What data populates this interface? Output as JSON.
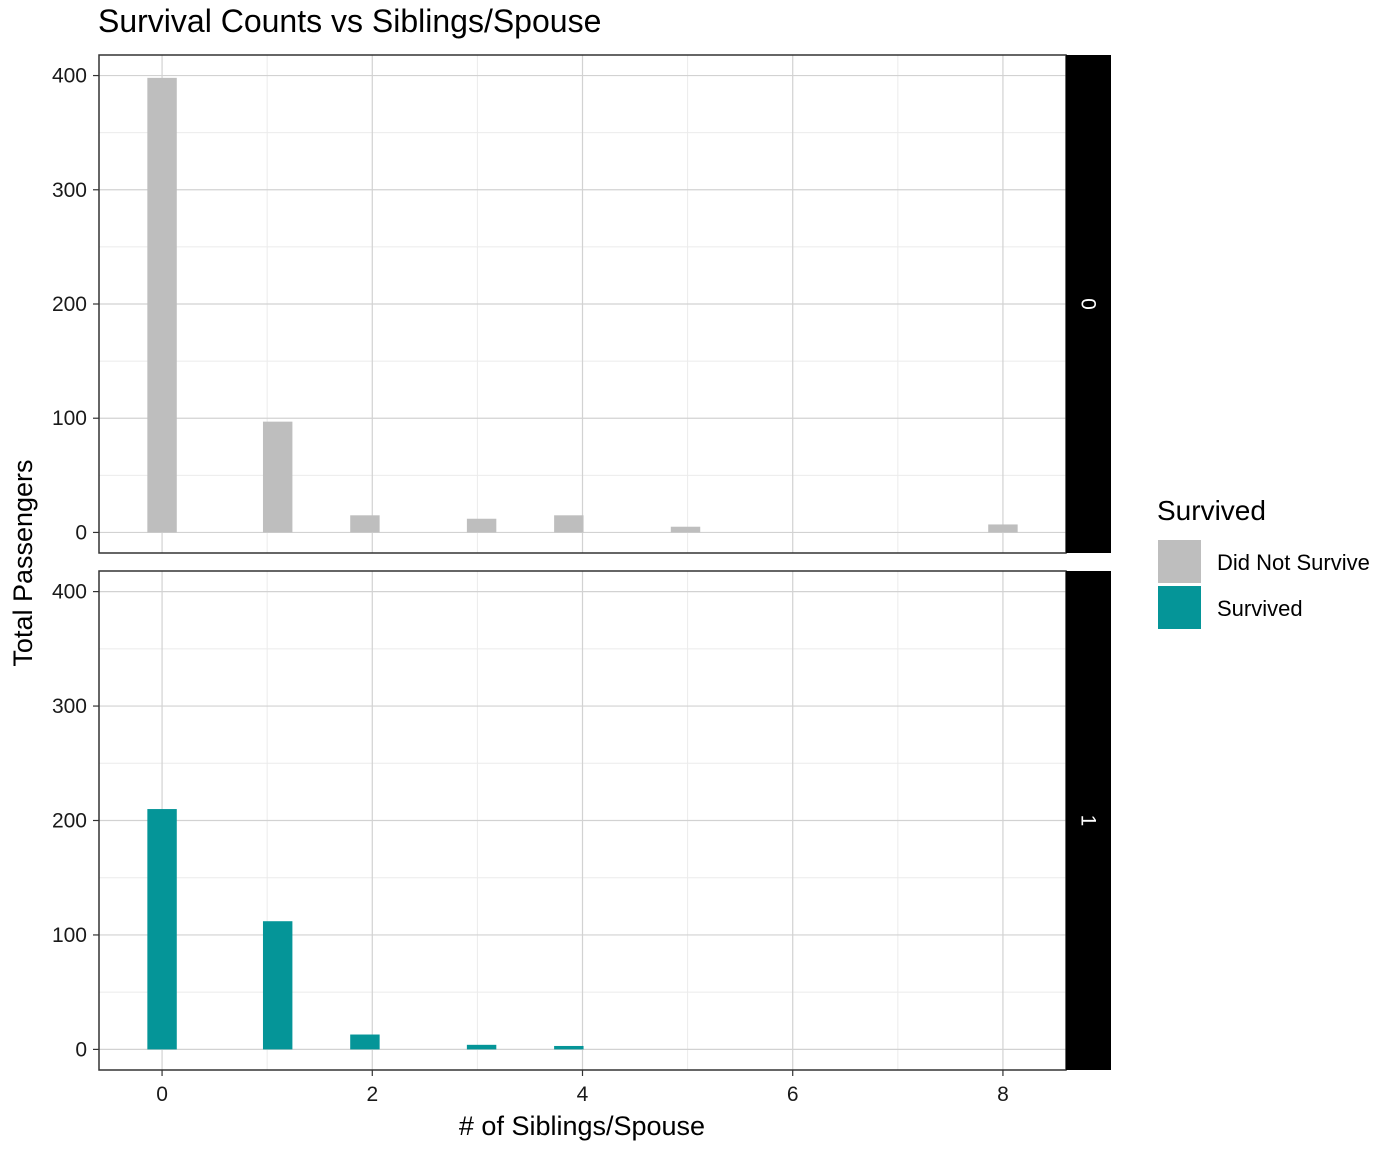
{
  "chart_data": {
    "type": "bar",
    "title": "Survival Counts vs Siblings/Spouse",
    "xlabel": "# of Siblings/Spouse",
    "ylabel": "Total Passengers",
    "xlim": [
      -0.6,
      8.6
    ],
    "ylim": [
      -18,
      418
    ],
    "x_ticks": [
      0,
      2,
      4,
      6,
      8
    ],
    "y_ticks": [
      0,
      100,
      200,
      300,
      400
    ],
    "grid": true,
    "bar_width": 0.28,
    "legend": {
      "title": "Survived",
      "position": "right",
      "entries": [
        {
          "label": "Did Not Survive",
          "color": "#bebebe"
        },
        {
          "label": "Survived",
          "color": "#059598"
        }
      ]
    },
    "facets": [
      {
        "strip": "0",
        "color": "#bebebe",
        "points": [
          {
            "x": 0,
            "y": 398
          },
          {
            "x": 1.1,
            "y": 97
          },
          {
            "x": 1.93,
            "y": 15
          },
          {
            "x": 3.04,
            "y": 12
          },
          {
            "x": 3.87,
            "y": 15
          },
          {
            "x": 4.98,
            "y": 5
          },
          {
            "x": 8.0,
            "y": 7
          }
        ]
      },
      {
        "strip": "1",
        "color": "#059598",
        "points": [
          {
            "x": 0,
            "y": 210
          },
          {
            "x": 1.1,
            "y": 112
          },
          {
            "x": 1.93,
            "y": 13
          },
          {
            "x": 3.04,
            "y": 4
          },
          {
            "x": 3.87,
            "y": 3
          }
        ]
      }
    ]
  }
}
